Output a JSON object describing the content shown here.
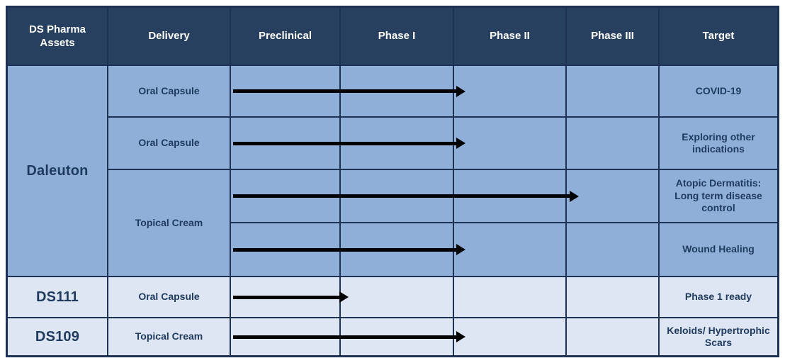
{
  "table": {
    "columns": [
      {
        "label": "DS Pharma Assets"
      },
      {
        "label": "Delivery"
      },
      {
        "label": "Preclinical"
      },
      {
        "label": "Phase I"
      },
      {
        "label": "Phase II"
      },
      {
        "label": "Phase III"
      },
      {
        "label": "Target"
      }
    ],
    "rows": [
      {
        "asset": "Daleuton",
        "delivery": "Oral Capsule",
        "target": "COVID-19",
        "arrow": {
          "from": "Preclinical",
          "to": "Phase II"
        }
      },
      {
        "delivery": "Oral Capsule",
        "target": "Exploring other indications",
        "arrow": {
          "from": "Preclinical",
          "to": "Phase II"
        }
      },
      {
        "delivery": "Topical Cream",
        "target": "Atopic Dermatitis: Long term disease control",
        "arrow": {
          "from": "Preclinical",
          "to": "Phase III"
        }
      },
      {
        "target": "Wound Healing",
        "arrow": {
          "from": "Preclinical",
          "to": "Phase II"
        }
      },
      {
        "asset": "DS111",
        "delivery": "Oral Capsule",
        "target": "Phase 1 ready",
        "arrow": {
          "from": "Preclinical",
          "to": "Phase I"
        }
      },
      {
        "asset": "DS109",
        "delivery": "Topical Cream",
        "target": "Keloids/ Hypertrophic Scars",
        "arrow": {
          "from": "Preclinical",
          "to": "Phase II"
        }
      }
    ],
    "colors": {
      "header_bg": "#27405f",
      "grid_line": "#1d3254",
      "group_row_bg": "#90afd8",
      "single_row_bg": "#dde6f2",
      "header_text": "#ffffff",
      "cell_text": "#1f3a5f",
      "arrow": "#000000"
    }
  },
  "chart_data": {
    "type": "table",
    "subtype": "gantt-pipeline",
    "title": "DS Pharma Assets",
    "phases": [
      "Preclinical",
      "Phase I",
      "Phase II",
      "Phase III"
    ],
    "items": [
      {
        "asset": "Daleuton",
        "delivery": "Oral Capsule",
        "progress_from": "Preclinical",
        "progress_to": "Phase II",
        "target": "COVID-19"
      },
      {
        "asset": "Daleuton",
        "delivery": "Oral Capsule",
        "progress_from": "Preclinical",
        "progress_to": "Phase II",
        "target": "Exploring other indications"
      },
      {
        "asset": "Daleuton",
        "delivery": "Topical Cream",
        "progress_from": "Preclinical",
        "progress_to": "Phase III",
        "target": "Atopic Dermatitis: Long term disease control"
      },
      {
        "asset": "Daleuton",
        "delivery": "Topical Cream",
        "progress_from": "Preclinical",
        "progress_to": "Phase II",
        "target": "Wound Healing"
      },
      {
        "asset": "DS111",
        "delivery": "Oral Capsule",
        "progress_from": "Preclinical",
        "progress_to": "Phase I",
        "target": "Phase 1 ready"
      },
      {
        "asset": "DS109",
        "delivery": "Topical Cream",
        "progress_from": "Preclinical",
        "progress_to": "Phase II",
        "target": "Keloids/ Hypertrophic Scars"
      }
    ]
  }
}
